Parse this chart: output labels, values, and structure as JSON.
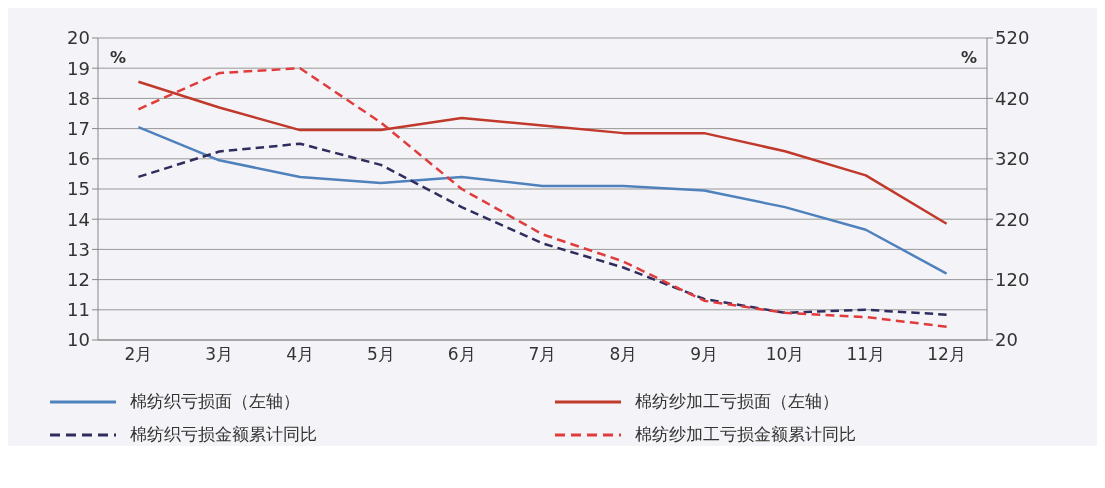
{
  "chart_data": {
    "type": "line",
    "categories": [
      "2月",
      "3月",
      "4月",
      "5月",
      "6月",
      "7月",
      "8月",
      "9月",
      "10月",
      "11月",
      "12月"
    ],
    "ylabel": "%",
    "y2label": "%",
    "ylim": [
      10,
      20
    ],
    "yticks": [
      10,
      11,
      12,
      13,
      14,
      15,
      16,
      17,
      18,
      19,
      20
    ],
    "y2lim": [
      20,
      520
    ],
    "y2ticks": [
      20,
      120,
      220,
      320,
      420,
      520
    ],
    "grid": "y",
    "legend": "bottom",
    "marker": "none",
    "series": [
      {
        "name": "棉纺织亏损面（左轴）",
        "color": "#4f81bd",
        "line_style": "solid",
        "values": [
          17.05,
          15.95,
          15.4,
          15.2,
          15.4,
          15.1,
          15.1,
          14.95,
          14.4,
          13.65,
          12.2
        ]
      },
      {
        "name": "棉纺纱加工亏损面（左轴）",
        "color": "#c0392b",
        "line_style": "solid",
        "values": [
          18.55,
          17.7,
          16.95,
          16.95,
          17.35,
          17.1,
          16.85,
          16.85,
          16.25,
          15.45,
          13.85
        ]
      },
      {
        "name": "棉纺织亏损金额累计同比",
        "color": "#2e2d5e",
        "line_style": "dashed",
        "axis": "y2",
        "values": [
          290,
          332,
          345,
          310,
          240,
          180,
          140,
          88,
          65,
          70,
          62
        ]
      },
      {
        "name": "棉纺纱加工亏损金额累计同比",
        "color": "#e03c3c",
        "line_style": "dashed",
        "axis": "y2",
        "values": [
          402,
          462,
          470,
          380,
          270,
          195,
          150,
          85,
          65,
          58,
          42
        ]
      }
    ]
  }
}
